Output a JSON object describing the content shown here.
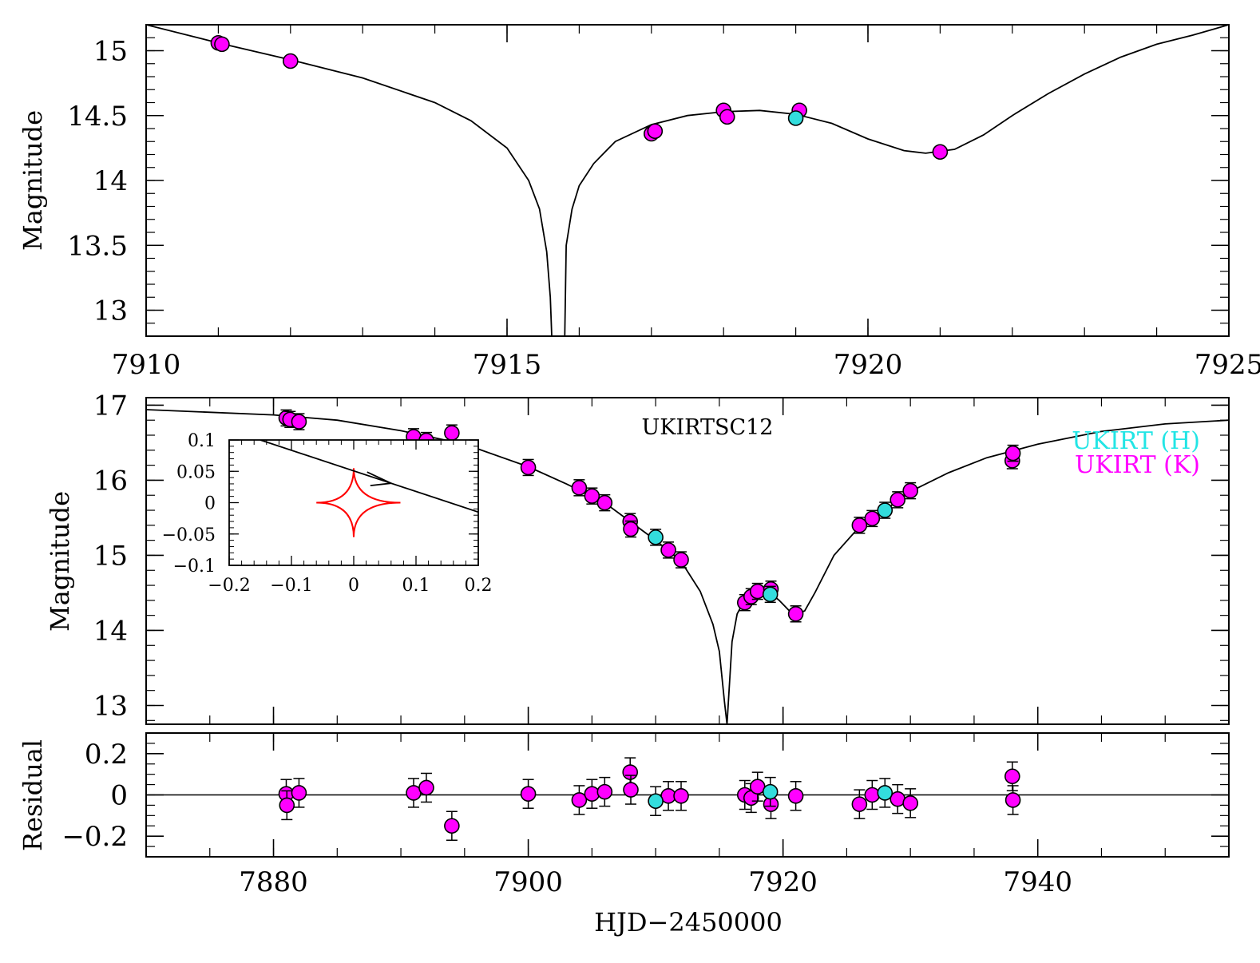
{
  "chart_data": [
    {
      "panel": "top",
      "type": "scatter",
      "xlim": [
        7910,
        7925
      ],
      "ylim": [
        15.2,
        12.8
      ],
      "ylabel": "Magnitude",
      "xticks": [
        "7910",
        "7915",
        "7920",
        "7925"
      ],
      "yticks": [
        "13",
        "13.5",
        "14",
        "14.5",
        "15"
      ],
      "model_curve": {
        "x": [
          7910.0,
          7911.0,
          7912.0,
          7913.0,
          7914.0,
          7914.5,
          7915.0,
          7915.3,
          7915.45,
          7915.55,
          7915.6,
          7915.62,
          7915.8,
          7915.82,
          7915.9,
          7916.0,
          7916.2,
          7916.5,
          7917.0,
          7917.5,
          7918.0,
          7918.5,
          7919.0,
          7919.5,
          7920.0,
          7920.5,
          7920.8,
          7921.2,
          7921.6,
          7922.0,
          7922.5,
          7923.0,
          7923.5,
          7924.0,
          7924.5,
          7925.0
        ],
        "y": [
          15.2,
          15.06,
          14.93,
          14.79,
          14.6,
          14.46,
          14.25,
          14.0,
          13.78,
          13.45,
          13.1,
          12.8,
          12.8,
          13.5,
          13.78,
          13.96,
          14.13,
          14.3,
          14.43,
          14.5,
          14.53,
          14.54,
          14.51,
          14.44,
          14.32,
          14.23,
          14.21,
          14.24,
          14.35,
          14.5,
          14.67,
          14.82,
          14.95,
          15.05,
          15.12,
          15.2
        ]
      },
      "series": [
        {
          "name": "UKIRT (K)",
          "color": "#ff00ff",
          "x": [
            7911.0,
            7911.05,
            7912.0,
            7917.0,
            7917.05,
            7918.0,
            7918.05,
            7919.05,
            7921.0
          ],
          "y": [
            15.06,
            15.05,
            14.92,
            14.36,
            14.38,
            14.54,
            14.49,
            14.54,
            14.22
          ]
        },
        {
          "name": "UKIRT (H)",
          "color": "#33dddd",
          "x": [
            7919.0
          ],
          "y": [
            14.48
          ]
        }
      ]
    },
    {
      "panel": "middle",
      "type": "scatter",
      "title": "UKIRTSC12",
      "xlim": [
        7870,
        7955
      ],
      "ylim": [
        17.1,
        12.75
      ],
      "ylabel": "Magnitude",
      "yticks": [
        "13",
        "14",
        "15",
        "16",
        "17"
      ],
      "legend": [
        {
          "label": "UKIRT (H)",
          "color": "#22e5e5"
        },
        {
          "label": "UKIRT (K)",
          "color": "#ff00ff"
        }
      ],
      "legend_placement": "top-right",
      "model_curve": {
        "x": [
          7870,
          7880,
          7885,
          7890,
          7895,
          7900,
          7903,
          7906,
          7908,
          7910,
          7912,
          7913.5,
          7914.5,
          7915.0,
          7915.4,
          7915.6,
          7916.0,
          7916.4,
          7917.0,
          7918.0,
          7919.0,
          7919.7,
          7920.5,
          7921.0,
          7921.7,
          7922.5,
          7924.0,
          7926.0,
          7928.0,
          7930.0,
          7933.0,
          7936.0,
          7940.0,
          7945.0,
          7950.0,
          7955.0
        ],
        "y": [
          16.94,
          16.87,
          16.8,
          16.66,
          16.48,
          16.18,
          15.95,
          15.7,
          15.45,
          15.2,
          14.92,
          14.52,
          14.08,
          13.72,
          13.05,
          12.75,
          13.85,
          14.22,
          14.41,
          14.5,
          14.5,
          14.4,
          14.26,
          14.21,
          14.26,
          14.5,
          15.0,
          15.38,
          15.6,
          15.85,
          16.1,
          16.3,
          16.48,
          16.65,
          16.75,
          16.8
        ]
      },
      "series": [
        {
          "name": "UKIRT (K)",
          "color": "#ff00ff",
          "x": [
            7881.0,
            7881.3,
            7882.0,
            7891.0,
            7892.0,
            7894.0,
            7900.0,
            7904.0,
            7905.0,
            7906.0,
            7908.0,
            7908.05,
            7911.0,
            7912.0,
            7917.0,
            7917.5,
            7918.0,
            7919.05,
            7921.0,
            7926.0,
            7927.0,
            7929.0,
            7930.0,
            7938.0,
            7938.05
          ],
          "y": [
            16.83,
            16.81,
            16.78,
            16.58,
            16.53,
            16.63,
            16.17,
            15.9,
            15.79,
            15.7,
            15.45,
            15.35,
            15.07,
            14.94,
            14.37,
            14.45,
            14.52,
            14.55,
            14.22,
            15.4,
            15.49,
            15.74,
            15.86,
            16.26,
            16.36
          ]
        },
        {
          "name": "UKIRT (H)",
          "color": "#33dddd",
          "x": [
            7910.0,
            7919.0,
            7928.0
          ],
          "y": [
            15.24,
            14.48,
            15.6
          ]
        }
      ]
    },
    {
      "panel": "inset",
      "type": "line",
      "xlim": [
        -0.2,
        0.2
      ],
      "ylim": [
        -0.1,
        0.1
      ],
      "xticks": [
        "−0.2",
        "−0.1",
        "0",
        "0.1",
        "0.2"
      ],
      "yticks": [
        "0.1",
        "0.05",
        "0",
        "−0.05",
        "−0.1"
      ],
      "trajectory": {
        "x": [
          -0.15,
          0.2
        ],
        "y": [
          0.1,
          -0.015
        ],
        "arrow_at_x": 0.06
      },
      "caustic": {
        "color": "#ff0000",
        "center": [
          0.0,
          0.0
        ],
        "half_width_x": 0.06,
        "half_height_y": 0.055,
        "right_cusp_x": 0.075
      }
    },
    {
      "panel": "bottom",
      "type": "scatter",
      "xlim": [
        7870,
        7955
      ],
      "ylim": [
        -0.3,
        0.3
      ],
      "xlabel": "HJD−2450000",
      "ylabel": "Residual",
      "xticks": [
        "7880",
        "7900",
        "7920",
        "7940"
      ],
      "yticks": [
        "0.2",
        "0",
        "−0.2"
      ],
      "series": [
        {
          "name": "UKIRT (K)",
          "color": "#ff00ff",
          "x": [
            7881.0,
            7881.05,
            7882.0,
            7891.0,
            7892.0,
            7894.0,
            7900.0,
            7904.0,
            7905.0,
            7906.0,
            7908.0,
            7908.05,
            7911.0,
            7912.0,
            7917.0,
            7917.5,
            7918.0,
            7919.05,
            7921.0,
            7926.0,
            7927.0,
            7929.0,
            7930.0,
            7938.0,
            7938.05
          ],
          "y": [
            0.005,
            -0.05,
            0.01,
            0.01,
            0.035,
            -0.15,
            0.005,
            -0.025,
            0.005,
            0.015,
            0.11,
            0.025,
            -0.005,
            -0.005,
            0.0,
            -0.015,
            0.04,
            -0.045,
            -0.005,
            -0.045,
            0.0,
            -0.02,
            -0.04,
            0.09,
            -0.025
          ]
        },
        {
          "name": "UKIRT (H)",
          "color": "#33dddd",
          "x": [
            7910.0,
            7919.0,
            7928.0
          ],
          "y": [
            -0.03,
            0.015,
            0.01
          ]
        }
      ]
    }
  ]
}
